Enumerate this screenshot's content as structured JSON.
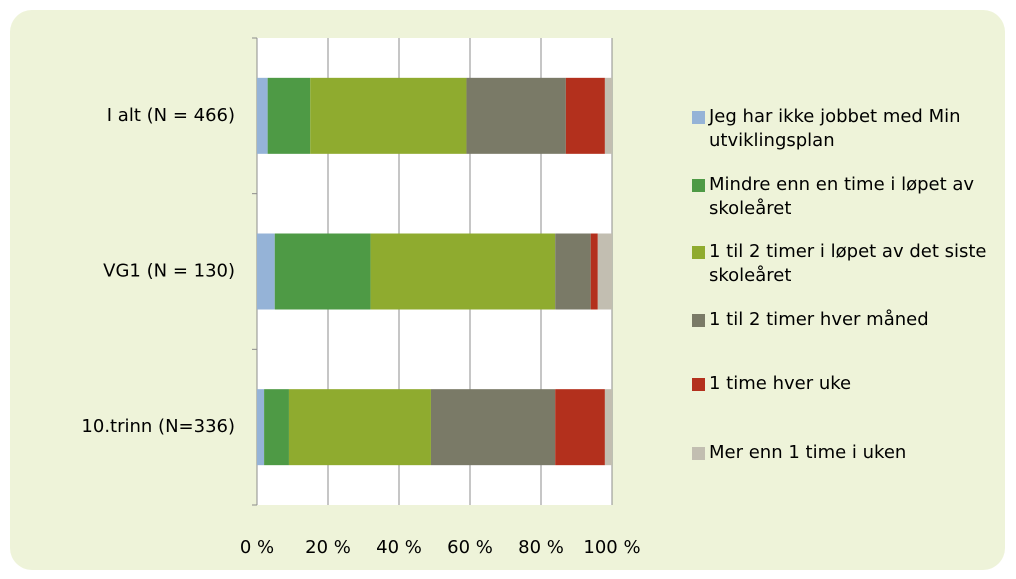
{
  "chart_data": {
    "type": "bar",
    "orientation": "horizontal",
    "stacked": true,
    "categories": [
      "I alt (N = 466)",
      "VG1 (N = 130)",
      "10.trinn (N=336)"
    ],
    "series": [
      {
        "name": "Jeg har ikke jobbet med Min utviklingsplan",
        "color": "#95b3d7",
        "values": [
          3,
          5,
          2
        ]
      },
      {
        "name": "Mindre enn en time i løpet av skoleåret",
        "color": "#4e9a45",
        "values": [
          12,
          27,
          7
        ]
      },
      {
        "name": "1 til 2 timer i løpet av det siste skoleåret",
        "color": "#8fab2f",
        "values": [
          44,
          52,
          40
        ]
      },
      {
        "name": "1 til 2 timer hver måned",
        "color": "#7a7a67",
        "values": [
          28,
          10,
          35
        ]
      },
      {
        "name": "1 time hver uke",
        "color": "#b3301d",
        "values": [
          11,
          2,
          14
        ]
      },
      {
        "name": "Mer enn 1 time i uken",
        "color": "#c2beb1",
        "values": [
          2,
          4,
          2
        ]
      }
    ],
    "xlim": [
      0,
      100
    ],
    "xticks": [
      {
        "value": 0,
        "label": "0 %"
      },
      {
        "value": 20,
        "label": "20 %"
      },
      {
        "value": 40,
        "label": "40 %"
      },
      {
        "value": 60,
        "label": "60 %"
      },
      {
        "value": 80,
        "label": "80 %"
      },
      {
        "value": 100,
        "label": "100 %"
      }
    ],
    "grid": true,
    "legend": "right"
  }
}
